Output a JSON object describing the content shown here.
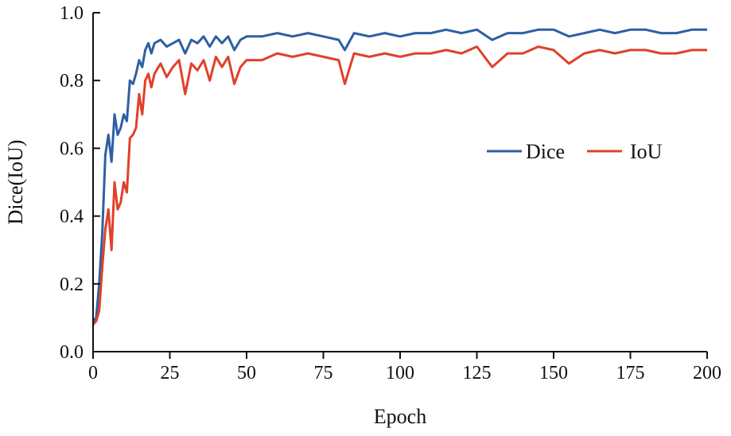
{
  "chart_data": {
    "type": "line",
    "title": "",
    "xlabel": "Epoch",
    "ylabel": "Dice(IoU)",
    "xlim": [
      0,
      200
    ],
    "ylim": [
      0.0,
      1.0
    ],
    "x_ticks": [
      "0",
      "25",
      "50",
      "75",
      "100",
      "125",
      "150",
      "175",
      "200"
    ],
    "y_ticks": [
      "0.0",
      "0.2",
      "0.4",
      "0.6",
      "0.8",
      "1.0"
    ],
    "grid": false,
    "legend_position": "right",
    "x": [
      0,
      1,
      2,
      3,
      4,
      5,
      6,
      7,
      8,
      9,
      10,
      11,
      12,
      13,
      14,
      15,
      16,
      17,
      18,
      19,
      20,
      22,
      24,
      26,
      28,
      30,
      32,
      34,
      36,
      38,
      40,
      42,
      44,
      46,
      48,
      50,
      55,
      60,
      65,
      70,
      75,
      80,
      82,
      85,
      90,
      95,
      100,
      105,
      110,
      115,
      120,
      125,
      130,
      135,
      140,
      145,
      150,
      155,
      160,
      165,
      170,
      175,
      180,
      185,
      190,
      195,
      200
    ],
    "series": [
      {
        "name": "Dice",
        "color": "#2e5fa3",
        "values": [
          0.09,
          0.1,
          0.2,
          0.35,
          0.58,
          0.64,
          0.56,
          0.7,
          0.64,
          0.66,
          0.7,
          0.68,
          0.8,
          0.79,
          0.82,
          0.86,
          0.84,
          0.89,
          0.91,
          0.88,
          0.91,
          0.92,
          0.9,
          0.91,
          0.92,
          0.88,
          0.92,
          0.91,
          0.93,
          0.9,
          0.93,
          0.91,
          0.93,
          0.89,
          0.92,
          0.93,
          0.93,
          0.94,
          0.93,
          0.94,
          0.93,
          0.92,
          0.89,
          0.94,
          0.93,
          0.94,
          0.93,
          0.94,
          0.94,
          0.95,
          0.94,
          0.95,
          0.92,
          0.94,
          0.94,
          0.95,
          0.95,
          0.93,
          0.94,
          0.95,
          0.94,
          0.95,
          0.95,
          0.94,
          0.94,
          0.95,
          0.95
        ]
      },
      {
        "name": "IoU",
        "color": "#e0412a",
        "values": [
          0.08,
          0.09,
          0.12,
          0.25,
          0.36,
          0.42,
          0.3,
          0.5,
          0.42,
          0.44,
          0.5,
          0.47,
          0.63,
          0.64,
          0.66,
          0.76,
          0.7,
          0.8,
          0.82,
          0.78,
          0.82,
          0.85,
          0.81,
          0.84,
          0.86,
          0.76,
          0.85,
          0.83,
          0.86,
          0.8,
          0.87,
          0.84,
          0.87,
          0.79,
          0.84,
          0.86,
          0.86,
          0.88,
          0.87,
          0.88,
          0.87,
          0.86,
          0.79,
          0.88,
          0.87,
          0.88,
          0.87,
          0.88,
          0.88,
          0.89,
          0.88,
          0.9,
          0.84,
          0.88,
          0.88,
          0.9,
          0.89,
          0.85,
          0.88,
          0.89,
          0.88,
          0.89,
          0.89,
          0.88,
          0.88,
          0.89,
          0.89
        ]
      }
    ]
  }
}
